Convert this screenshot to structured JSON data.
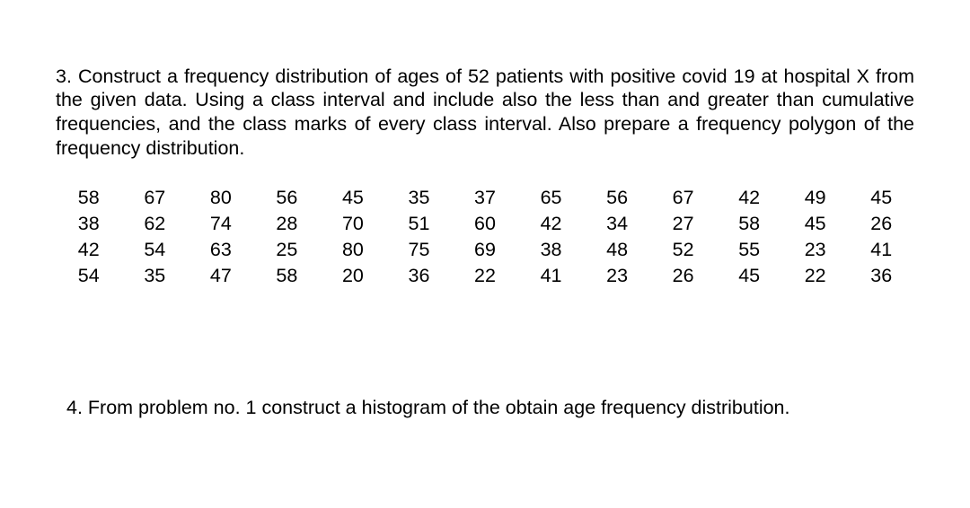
{
  "problem3": {
    "text": "3. Construct a frequency distribution of ages of 52 patients with positive covid 19 at hospital X from the given data. Using a class interval and include also the less than and greater than cumulative frequencies, and the class marks of every class interval. Also prepare a frequency polygon of the frequency distribution.",
    "data": [
      [
        58,
        67,
        80,
        56,
        45,
        35,
        37,
        65,
        56,
        67,
        42,
        49,
        45
      ],
      [
        38,
        62,
        74,
        28,
        70,
        51,
        60,
        42,
        34,
        27,
        58,
        45,
        26
      ],
      [
        42,
        54,
        63,
        25,
        80,
        75,
        69,
        38,
        48,
        52,
        55,
        23,
        41
      ],
      [
        54,
        35,
        47,
        58,
        20,
        36,
        22,
        41,
        23,
        26,
        45,
        22,
        36
      ]
    ],
    "font_size_pt": 16,
    "text_color": "#000000",
    "background": "#ffffff",
    "columns": 13,
    "rows": 4
  },
  "problem4": {
    "text": "4. From problem no. 1 construct a histogram of the obtain age frequency distribution."
  }
}
